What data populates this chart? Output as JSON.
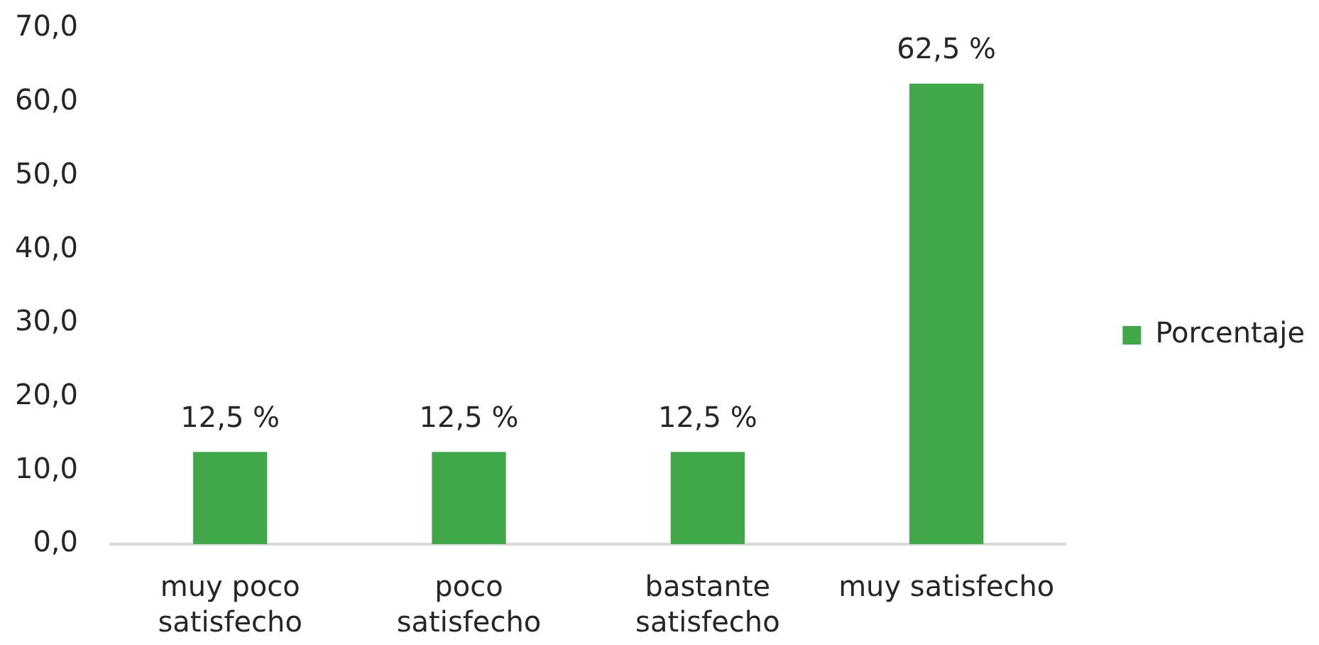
{
  "chart_data": {
    "type": "bar",
    "categories": [
      "muy poco satisfecho",
      "poco satisfecho",
      "bastante satisfecho",
      "muy satisfecho"
    ],
    "series": [
      {
        "name": "Porcentaje",
        "color": "#41a84a",
        "values": [
          12.5,
          12.5,
          12.5,
          62.5
        ],
        "value_labels": [
          "12,5 %",
          "12,5 %",
          "12,5 %",
          "62,5 %"
        ]
      }
    ],
    "ylim": [
      0,
      70
    ],
    "yticks": [
      {
        "value": 0,
        "label": "0,0"
      },
      {
        "value": 10,
        "label": "10,0"
      },
      {
        "value": 20,
        "label": "20,0"
      },
      {
        "value": 30,
        "label": "30,0"
      },
      {
        "value": 40,
        "label": "40,0"
      },
      {
        "value": 50,
        "label": "50,0"
      },
      {
        "value": 60,
        "label": "60,0"
      },
      {
        "value": 70,
        "label": "70,0"
      }
    ],
    "grid": false,
    "legend": "right"
  }
}
